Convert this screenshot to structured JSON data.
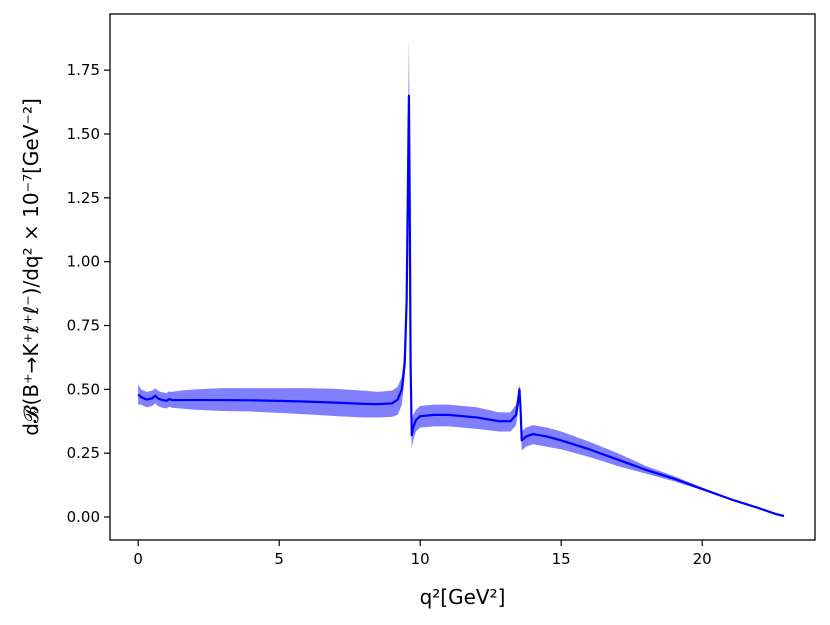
{
  "chart_data": {
    "type": "line",
    "title": "",
    "xlabel": "q²[GeV²]",
    "ylabel": "d𝓑(B⁺→K⁺ℓ⁺ℓ⁻)/dq² × 10⁻⁷[GeV⁻²]",
    "xlim": [
      -1.0,
      24.0
    ],
    "ylim": [
      -0.09,
      1.97
    ],
    "x_ticks": [
      0,
      5,
      10,
      15,
      20
    ],
    "x_tick_labels": [
      "0",
      "5",
      "10",
      "15",
      "20"
    ],
    "y_ticks": [
      0.0,
      0.25,
      0.5,
      0.75,
      1.0,
      1.25,
      1.5,
      1.75
    ],
    "y_tick_labels": [
      "0.00",
      "0.25",
      "0.50",
      "0.75",
      "1.00",
      "1.25",
      "1.50",
      "1.75"
    ],
    "grid": false,
    "line_color": "#0000ff",
    "band_color": "#8080ff",
    "series": [
      {
        "x": [
          0.0,
          0.1,
          0.3,
          0.5,
          0.6,
          0.7,
          0.8,
          1.0,
          1.1,
          1.2,
          1.5,
          2,
          3,
          4,
          5,
          6,
          7,
          8,
          8.5,
          9.0,
          9.2,
          9.35,
          9.45,
          9.52,
          9.57,
          9.6,
          9.63,
          9.66,
          9.7,
          9.75,
          9.85,
          10.0,
          10.5,
          11,
          12,
          12.8,
          13.2,
          13.4,
          13.48,
          13.52,
          13.56,
          13.6,
          13.65,
          13.75,
          14.0,
          14.5,
          15,
          16,
          17,
          18,
          19,
          20,
          21,
          22,
          22.6,
          22.9
        ],
        "y": [
          0.48,
          0.47,
          0.46,
          0.465,
          0.475,
          0.465,
          0.46,
          0.455,
          0.462,
          0.458,
          0.458,
          0.458,
          0.458,
          0.457,
          0.455,
          0.452,
          0.448,
          0.443,
          0.442,
          0.445,
          0.46,
          0.5,
          0.6,
          0.85,
          1.35,
          1.65,
          1.2,
          0.6,
          0.32,
          0.35,
          0.38,
          0.395,
          0.4,
          0.4,
          0.39,
          0.375,
          0.375,
          0.4,
          0.46,
          0.5,
          0.42,
          0.3,
          0.305,
          0.315,
          0.325,
          0.315,
          0.3,
          0.265,
          0.225,
          0.185,
          0.15,
          0.11,
          0.07,
          0.035,
          0.012,
          0.004
        ]
      }
    ],
    "band": {
      "x": [
        0.0,
        0.1,
        0.3,
        0.5,
        0.6,
        0.7,
        0.8,
        1.0,
        1.1,
        1.2,
        1.5,
        2,
        3,
        4,
        5,
        6,
        7,
        8,
        8.5,
        9.0,
        9.2,
        9.35,
        9.45,
        9.52,
        9.57,
        9.6,
        9.63,
        9.66,
        9.7,
        9.75,
        9.85,
        10.0,
        10.5,
        11,
        12,
        12.8,
        13.2,
        13.4,
        13.48,
        13.52,
        13.56,
        13.6,
        13.65,
        13.75,
        14.0,
        14.5,
        15,
        16,
        17,
        18,
        19,
        20,
        21,
        22,
        22.6,
        22.9
      ],
      "upper": [
        0.52,
        0.5,
        0.49,
        0.495,
        0.505,
        0.495,
        0.49,
        0.485,
        0.492,
        0.49,
        0.495,
        0.5,
        0.505,
        0.505,
        0.505,
        0.505,
        0.502,
        0.495,
        0.49,
        0.495,
        0.51,
        0.55,
        0.66,
        0.95,
        1.55,
        1.88,
        1.4,
        0.7,
        0.37,
        0.4,
        0.42,
        0.435,
        0.44,
        0.44,
        0.43,
        0.41,
        0.41,
        0.44,
        0.5,
        0.52,
        0.46,
        0.34,
        0.34,
        0.35,
        0.36,
        0.35,
        0.335,
        0.295,
        0.25,
        0.2,
        0.16,
        0.115,
        0.072,
        0.036,
        0.013,
        0.005
      ],
      "lower": [
        0.44,
        0.44,
        0.43,
        0.435,
        0.445,
        0.435,
        0.43,
        0.425,
        0.432,
        0.428,
        0.425,
        0.42,
        0.415,
        0.413,
        0.408,
        0.402,
        0.395,
        0.39,
        0.39,
        0.392,
        0.4,
        0.44,
        0.55,
        0.77,
        1.2,
        1.45,
        1.05,
        0.5,
        0.27,
        0.3,
        0.335,
        0.35,
        0.355,
        0.355,
        0.345,
        0.335,
        0.335,
        0.36,
        0.42,
        0.47,
        0.38,
        0.26,
        0.265,
        0.275,
        0.285,
        0.275,
        0.265,
        0.235,
        0.2,
        0.17,
        0.14,
        0.105,
        0.068,
        0.034,
        0.011,
        0.003
      ]
    }
  }
}
